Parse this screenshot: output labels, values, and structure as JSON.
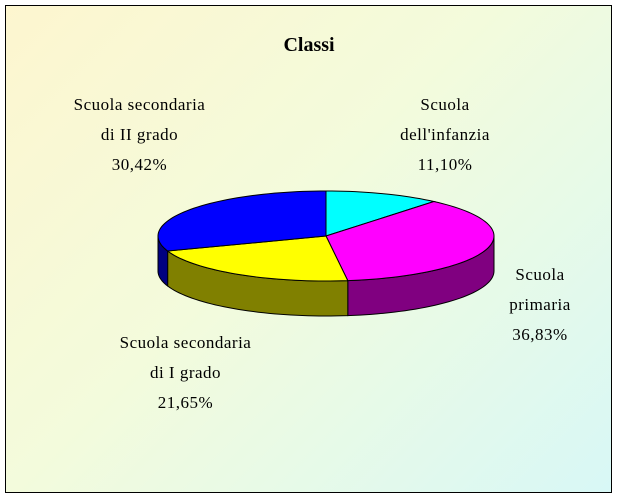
{
  "chart_data": {
    "type": "pie3d",
    "title": "Classi",
    "categories": [
      "Scuola dell'infanzia",
      "Scuola primaria",
      "Scuola secondaria di I grado",
      "Scuola secondaria di II grado"
    ],
    "values": [
      11.1,
      36.83,
      21.65,
      30.42
    ],
    "value_labels": [
      "11,10%",
      "36,83%",
      "21,65%",
      "30,42%"
    ],
    "colors": [
      "#00ffff",
      "#ff00ff",
      "#ffff00",
      "#0000ff"
    ]
  }
}
